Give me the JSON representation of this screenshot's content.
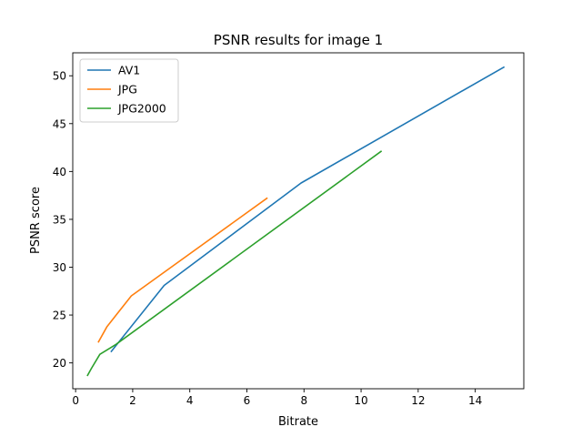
{
  "chart_data": {
    "type": "line",
    "title": "PSNR results for image 1",
    "xlabel": "Bitrate",
    "ylabel": "PSNR score",
    "xlim": [
      -0.1,
      15.7
    ],
    "ylim": [
      17.3,
      52.4
    ],
    "xticks": [
      0,
      2,
      4,
      6,
      8,
      10,
      12,
      14
    ],
    "yticks": [
      20,
      25,
      30,
      35,
      40,
      45,
      50
    ],
    "grid": false,
    "legend": "upper-left",
    "series": [
      {
        "name": "AV1",
        "color": "#1f77b4",
        "x": [
          1.25,
          3.1,
          7.9,
          15.0
        ],
        "y": [
          21.2,
          28.1,
          38.8,
          50.9
        ]
      },
      {
        "name": "JPG",
        "color": "#ff7f0e",
        "x": [
          0.8,
          1.1,
          1.95,
          6.7
        ],
        "y": [
          22.2,
          23.8,
          27.0,
          37.2
        ]
      },
      {
        "name": "JPG2000",
        "color": "#2ca02c",
        "x": [
          0.42,
          0.55,
          0.85,
          1.4,
          10.7
        ],
        "y": [
          18.7,
          19.4,
          20.9,
          21.9,
          42.1
        ]
      }
    ]
  }
}
